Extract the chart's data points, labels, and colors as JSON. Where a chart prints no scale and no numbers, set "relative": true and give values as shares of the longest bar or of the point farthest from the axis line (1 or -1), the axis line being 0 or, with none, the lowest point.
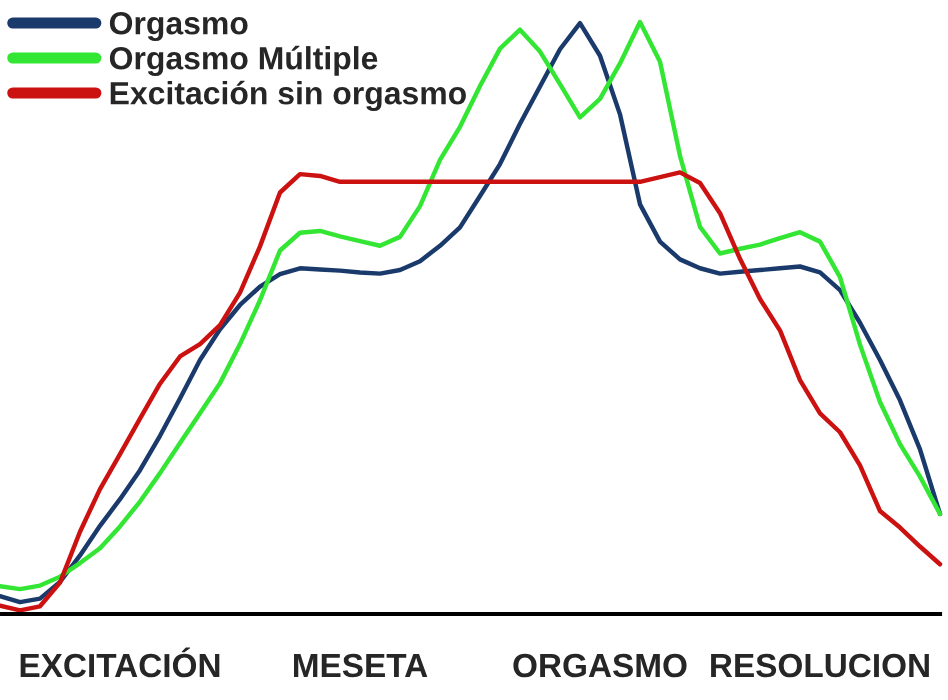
{
  "chart_data": {
    "type": "line",
    "relative": true,
    "legend": "top left",
    "grid": false,
    "marker": "none",
    "line_style": "solid",
    "categories": [
      null,
      null,
      null,
      null,
      null,
      null,
      "EXCITACIÓN",
      null,
      null,
      null,
      null,
      null,
      null,
      null,
      null,
      null,
      null,
      null,
      "MESETA",
      null,
      null,
      null,
      null,
      null,
      null,
      null,
      null,
      null,
      null,
      null,
      "ORGASMO",
      null,
      null,
      null,
      null,
      null,
      null,
      null,
      null,
      null,
      null,
      "RESOLUCION",
      null,
      null,
      null,
      null,
      null,
      null
    ],
    "series": [
      {
        "name": "Orgasmo",
        "color": "#1a3a6b",
        "values": [
          0.03,
          0.02,
          0.026,
          0.054,
          0.099,
          0.149,
          0.194,
          0.243,
          0.301,
          0.364,
          0.429,
          0.481,
          0.522,
          0.553,
          0.574,
          0.584,
          0.582,
          0.58,
          0.577,
          0.575,
          0.581,
          0.596,
          0.622,
          0.653,
          0.706,
          0.76,
          0.828,
          0.891,
          0.954,
          0.998,
          0.943,
          0.844,
          0.692,
          0.629,
          0.599,
          0.584,
          0.575,
          0.578,
          0.581,
          0.584,
          0.587,
          0.577,
          0.547,
          0.492,
          0.429,
          0.361,
          0.278,
          0.169
        ]
      },
      {
        "name": "Orgasmo Múltiple",
        "color": "#33e633",
        "values": [
          0.047,
          0.042,
          0.048,
          0.063,
          0.086,
          0.111,
          0.148,
          0.19,
          0.238,
          0.289,
          0.339,
          0.39,
          0.456,
          0.53,
          0.614,
          0.644,
          0.647,
          0.638,
          0.63,
          0.622,
          0.637,
          0.689,
          0.767,
          0.823,
          0.892,
          0.955,
          0.987,
          0.95,
          0.895,
          0.839,
          0.87,
          0.93,
          1.0,
          0.933,
          0.774,
          0.654,
          0.609,
          0.617,
          0.624,
          0.635,
          0.645,
          0.629,
          0.569,
          0.455,
          0.358,
          0.287,
          0.232,
          0.169
        ]
      },
      {
        "name": "Excitación sin orgasmo",
        "color": "#cc1111",
        "values": [
          0.014,
          0.006,
          0.013,
          0.053,
          0.139,
          0.211,
          0.27,
          0.33,
          0.389,
          0.435,
          0.456,
          0.488,
          0.543,
          0.621,
          0.712,
          0.743,
          0.74,
          0.73,
          0.73,
          0.73,
          0.73,
          0.73,
          0.73,
          0.73,
          0.73,
          0.73,
          0.73,
          0.73,
          0.73,
          0.73,
          0.73,
          0.73,
          0.73,
          0.738,
          0.746,
          0.728,
          0.677,
          0.6,
          0.532,
          0.479,
          0.395,
          0.339,
          0.307,
          0.251,
          0.174,
          0.146,
          0.114,
          0.084
        ]
      }
    ]
  }
}
